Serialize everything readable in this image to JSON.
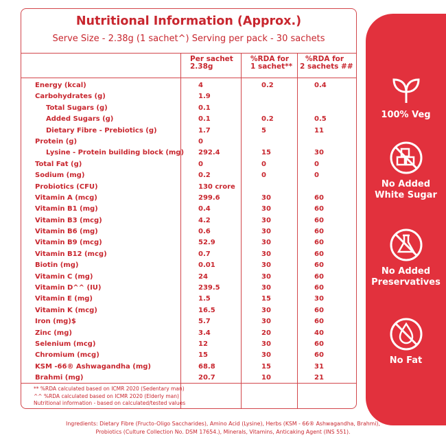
{
  "title": "Nutritional Information (Approx.)",
  "subtitle": "Serve Size - 2.38g (1 sachet^) Serving per pack - 30 sachets",
  "columns": {
    "per_sachet": [
      "Per sachet",
      "2.38g"
    ],
    "rda1": [
      "%RDA for",
      "1 sachet**"
    ],
    "rda2": [
      "%RDA for",
      "2 sachets ##"
    ]
  },
  "rows": [
    {
      "name": "Energy (kcal)",
      "per": "4",
      "rda1": "0.2",
      "rda2": "0.4",
      "sub": false
    },
    {
      "name": "Carbohydrates (g)",
      "per": "1.9",
      "rda1": "",
      "rda2": "",
      "sub": false
    },
    {
      "name": "Total Sugars (g)",
      "per": "0.1",
      "rda1": "",
      "rda2": "",
      "sub": true
    },
    {
      "name": "Added Sugars (g)",
      "per": "0.1",
      "rda1": "0.2",
      "rda2": "0.5",
      "sub": true
    },
    {
      "name": "Dietary Fibre - Prebiotics (g)",
      "per": "1.7",
      "rda1": "5",
      "rda2": "11",
      "sub": true
    },
    {
      "name": "Protein (g)",
      "per": "0",
      "rda1": "",
      "rda2": "",
      "sub": false
    },
    {
      "name": "Lysine - Protein building block  (mg)",
      "per": "292.4",
      "rda1": "15",
      "rda2": "30",
      "sub": true
    },
    {
      "name": "Total Fat (g)",
      "per": "0",
      "rda1": "0",
      "rda2": "0",
      "sub": false
    },
    {
      "name": "Sodium (mg)",
      "per": "0.2",
      "rda1": "0",
      "rda2": "0",
      "sub": false
    },
    {
      "name": "Probiotics (CFU)",
      "per": "130 crore",
      "rda1": "",
      "rda2": "",
      "sub": false
    },
    {
      "name": "Vitamin A (mcg)",
      "per": "299.6",
      "rda1": "30",
      "rda2": "60",
      "sub": false
    },
    {
      "name": "Vitamin B1 (mg)",
      "per": "0.4",
      "rda1": "30",
      "rda2": "60",
      "sub": false
    },
    {
      "name": "Vitamin B3 (mcg)",
      "per": "4.2",
      "rda1": "30",
      "rda2": "60",
      "sub": false
    },
    {
      "name": "Vitamin B6 (mg)",
      "per": "0.6",
      "rda1": "30",
      "rda2": "60",
      "sub": false
    },
    {
      "name": "Vitamin B9 (mcg)",
      "per": "52.9",
      "rda1": "30",
      "rda2": "60",
      "sub": false
    },
    {
      "name": "Vitamin B12 (mcg)",
      "per": "0.7",
      "rda1": "30",
      "rda2": "60",
      "sub": false
    },
    {
      "name": "Biotin (mg)",
      "per": "0.01",
      "rda1": "30",
      "rda2": "60",
      "sub": false
    },
    {
      "name": "Vitamin C (mg)",
      "per": "24",
      "rda1": "30",
      "rda2": "60",
      "sub": false
    },
    {
      "name": "Vitamin D^^ (IU)",
      "per": "239.5",
      "rda1": "30",
      "rda2": "60",
      "sub": false
    },
    {
      "name": "Vitamin E (mg)",
      "per": "1.5",
      "rda1": "15",
      "rda2": "30",
      "sub": false
    },
    {
      "name": "Vitamin K (mcg)",
      "per": "16.5",
      "rda1": "30",
      "rda2": "60",
      "sub": false
    },
    {
      "name": "Iron (mg)$",
      "per": "5.7",
      "rda1": "30",
      "rda2": "60",
      "sub": false
    },
    {
      "name": "Zinc (mg)",
      "per": "3.4",
      "rda1": "20",
      "rda2": "40",
      "sub": false
    },
    {
      "name": "Selenium (mcg)",
      "per": "12",
      "rda1": "30",
      "rda2": "60",
      "sub": false
    },
    {
      "name": "Chromium (mcg)",
      "per": "15",
      "rda1": "30",
      "rda2": "60",
      "sub": false
    },
    {
      "name": "KSM -66® Ashwagandha (mg)",
      "per": "68.8",
      "rda1": "15",
      "rda2": "31",
      "sub": false
    },
    {
      "name": "Brahmi (mg)",
      "per": "20.7",
      "rda1": "10",
      "rda2": "21",
      "sub": false
    }
  ],
  "notes": [
    "** %RDA calculated based on ICMR 2020 (Sedentary man)",
    "^^ %RDA calculated based on ICMR 2020 (Elderly man)",
    "Nutritional information - based on calculated/tested values"
  ],
  "ingredients": [
    "Ingredients: Dietary Fibre (Fructo-Oligo Saccharides), Amino Acid (Lysine), Herbs (KSM - 66® Ashwagandha, Brahmi),",
    "Probiotics (Culture Collection No. DSM 17654.), Minerals, Vitamins, Anticaking Agent (INS 551)."
  ],
  "badges": [
    {
      "icon": "leaf-icon",
      "label": [
        "100% Veg"
      ]
    },
    {
      "icon": "no-sugar-cubes-icon",
      "label": [
        "No Added",
        "White Sugar"
      ]
    },
    {
      "icon": "no-flask-icon",
      "label": [
        "No Added",
        "Preservatives"
      ]
    },
    {
      "icon": "no-fat-drop-icon",
      "label": [
        "No Fat"
      ]
    }
  ],
  "colors": {
    "accent": "#c8262e",
    "side_panel": "#e2313d"
  }
}
